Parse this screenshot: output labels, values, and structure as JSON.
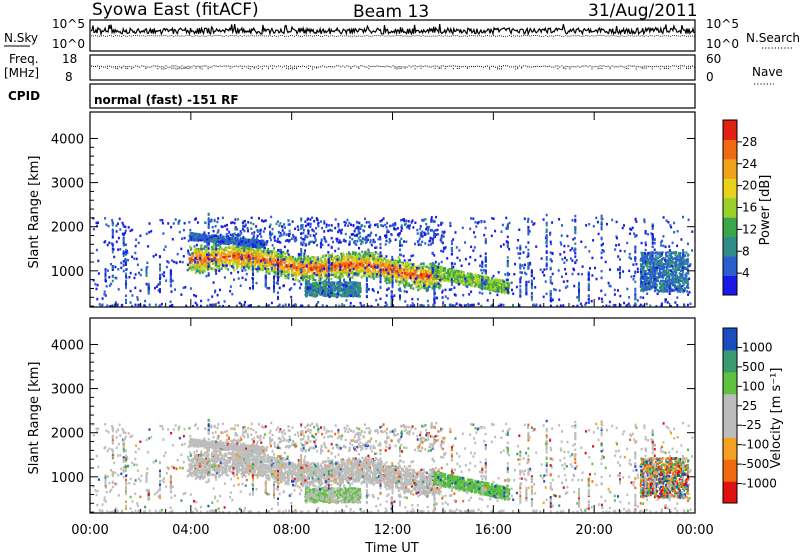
{
  "header": {
    "station": "Syowa East (fitACF)",
    "beam": "Beam 13",
    "date": "31/Aug/2011"
  },
  "meta_panels": {
    "nsky_label": "N.Sky",
    "nsearch_label": "N.Search",
    "nsky_ticks": [
      "10^5",
      "10^0"
    ],
    "nsearch_ticks": [
      "10^5",
      "10^0"
    ],
    "freq_label_1": "Freq.",
    "freq_label_2": "[MHz]",
    "freq_ticks": [
      "18",
      "8"
    ],
    "nave_label": "Nave",
    "nave_ticks": [
      "60",
      "0"
    ],
    "cpid_label": "CPID",
    "cpid_value": "normal (fast) -151 RF"
  },
  "chart_data": [
    {
      "type": "heatmap",
      "name": "power",
      "ylabel": "Slant Range [km]",
      "xlabel": "",
      "xlim": [
        0,
        24
      ],
      "ylim": [
        180,
        4600
      ],
      "yticks": [
        "1000",
        "2000",
        "3000",
        "4000"
      ],
      "colorbar": {
        "label": "Power [dB]",
        "range": [
          0,
          31
        ],
        "ticks": [
          "4",
          "8",
          "12",
          "16",
          "20",
          "24",
          "28"
        ],
        "colors": [
          "#1a1ae6",
          "#2b5fcf",
          "#2f8a8a",
          "#3aa64a",
          "#9bd02c",
          "#e9d21a",
          "#f0a21a",
          "#ef6a12",
          "#e02010"
        ]
      },
      "regions": [
        {
          "x": [
            3.9,
            13.9
          ],
          "y": [
            900,
            1900
          ],
          "level": 0.55
        },
        {
          "x": [
            5.0,
            12.5
          ],
          "y": [
            1000,
            1500
          ],
          "level": 0.8
        },
        {
          "x": [
            8.5,
            10.5
          ],
          "y": [
            450,
            800
          ],
          "level": 0.3
        },
        {
          "x": [
            13.6,
            16.5
          ],
          "y": [
            600,
            1000
          ],
          "level": 0.55
        },
        {
          "x": [
            21.8,
            23.7
          ],
          "y": [
            500,
            1500
          ],
          "level": 0.3
        }
      ]
    },
    {
      "type": "heatmap",
      "name": "velocity",
      "ylabel": "Slant Range [km]",
      "xlabel": "Time UT",
      "xlim": [
        0,
        24
      ],
      "ylim": [
        180,
        4600
      ],
      "yticks": [
        "1000",
        "2000",
        "3000",
        "4000"
      ],
      "xticks": [
        "00:00",
        "04:00",
        "08:00",
        "12:00",
        "16:00",
        "20:00",
        "00:00"
      ],
      "colorbar": {
        "label": "Velocity [m s⁻¹]",
        "range": [
          -1300,
          1300
        ],
        "ticks": [
          "1000",
          "500",
          "100",
          "25",
          "-25",
          "-100",
          "-500",
          "-1000"
        ],
        "colors": [
          "#e01010",
          "#f06a10",
          "#f4a020",
          "#bcbcbc",
          "#bcbcbc",
          "#60c040",
          "#3a9a70",
          "#1a4ec0"
        ]
      },
      "regions": [
        {
          "x": [
            3.9,
            13.9
          ],
          "y": [
            1000,
            1900
          ],
          "level": "ground-scatter"
        },
        {
          "x": [
            13.6,
            16.5
          ],
          "y": [
            600,
            1000
          ],
          "level": "positive-small"
        },
        {
          "x": [
            21.8,
            23.7
          ],
          "y": [
            500,
            1500
          ],
          "level": "mixed"
        }
      ]
    }
  ]
}
